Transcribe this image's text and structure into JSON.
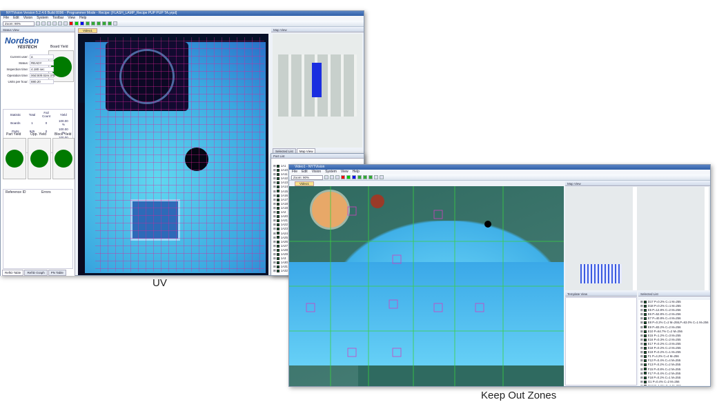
{
  "uv_window": {
    "title": "NYTVision Version 5.2.4.6 Build 8096 - Programmer Mode - Recipe: [FLASH_LAMP_Recipe PUP PUP TA.yrpd]",
    "menu": [
      "File",
      "Edit",
      "Vision",
      "System",
      "Toolbar",
      "View",
      "Help"
    ],
    "zoom": "Zoom: 90%",
    "status_view": {
      "header": "Status View",
      "logo": "Nordson YESTECH",
      "board_yield_label": "Board Yield",
      "fields": [
        {
          "label": "Current user:",
          "value": "a"
        },
        {
          "label": "Status:",
          "value": "READY"
        },
        {
          "label": "Inspection time:",
          "value": "4.180 sec"
        },
        {
          "label": "Operation time:",
          "value": "00d:00h:02m:37s"
        },
        {
          "label": "Units per hour:",
          "value": "880.20"
        }
      ],
      "stats_headers": [
        "Statistic",
        "Total",
        "Fail Count",
        "Yield"
      ],
      "stats_rows": [
        [
          "Boards",
          "1",
          "0",
          "100.00 %"
        ],
        [
          "Parts",
          "945",
          "0",
          "100.00 %"
        ],
        [
          "Opportunities",
          "945",
          "0",
          "100.00 %"
        ],
        [
          "Blocks",
          "2",
          "0",
          "100.00 %"
        ]
      ],
      "yields": [
        "Part Yield",
        "Opp. Yield",
        "Block Yield"
      ],
      "error_headers": [
        "Reference ID",
        "Errors"
      ],
      "bottom_tabs": [
        "RefID Table",
        "RefID Graph",
        "PN Table"
      ],
      "yield_color": "#007a00"
    },
    "video_tab": "Video1",
    "map_view": {
      "header": "Map View",
      "tabs": [
        "Selected List",
        "Map View"
      ]
    }
  },
  "part_list": {
    "header": "Part List",
    "items": [
      "1A1",
      "1A10",
      "1A11",
      "1A12",
      "1A13",
      "1A14",
      "1A15",
      "1A16",
      "1A17",
      "1A18",
      "1A19",
      "1A2",
      "1A20",
      "1A21",
      "1A22",
      "1A23",
      "1A24",
      "1A25",
      "1A26",
      "1A27",
      "1A28",
      "1A29",
      "1A3",
      "1A30",
      "1A31",
      "1A32"
    ]
  },
  "koz_window": {
    "title": "Video1 - NYTVision",
    "menu": [
      "File",
      "Edit",
      "Vision",
      "System",
      "View",
      "Help"
    ],
    "zoom": "Zoom: 90%",
    "video_tab": "Video1",
    "map_view_header": "Map View",
    "template_view_header": "Template View",
    "selected_list_header": "Selected List",
    "selected_list": [
      "D17 P=0.2% C=1 M=255",
      "D18 P=0.2% C=1 M=255",
      "E5 P=12.8% C=2 M=256",
      "E6 P=52.8% C=2 M=256",
      "E7 P=40.8% C=4 M=256",
      "E8 P=0.2% C=2 M=255,P=63.0% C=1 M=256",
      "E9 P=83.2% C=2 M=256",
      "E10 P=64.7% C=2 M=256",
      "E15 P=1.2% C=3 M=255",
      "E16 P=0.3% C=2 M=255",
      "E17 P=0.2% C=3 M=255",
      "E18 P=0.2% C=2 M=255",
      "E19 P=0.2% C=1 M=255",
      "F1 P=4.2% C=4 M=256",
      "F12 P=0.4% C=4 M=255",
      "F13 P=0.2% C=2 M=255",
      "F15 P=0.8% C=2 M=255",
      "F17 P=0.4% C=2 M=255",
      "F18 P=0.2% C=1 M=255",
      "G1 P=0.4% C=2 M=256",
      "G13 P=1.5% C=1 M=255",
      "G23 P=0.8% C=1 M=255"
    ]
  },
  "captions": {
    "uv": "UV",
    "koz": "Keep Out Zones"
  }
}
